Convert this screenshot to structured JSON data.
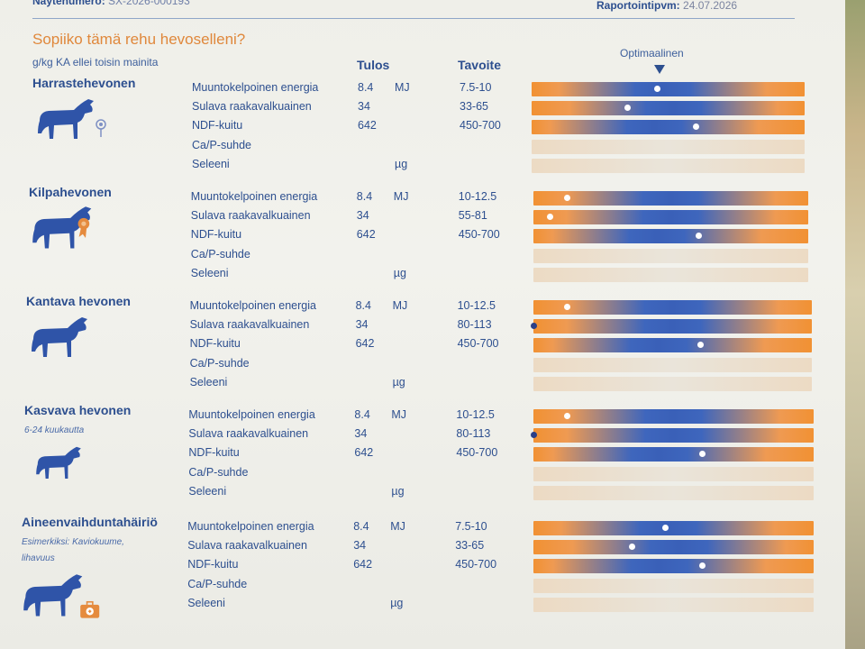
{
  "header": {
    "sample_label": "Näytenumero:",
    "sample_value": "SX-2026-000193",
    "report_label": "Raportointipvm:",
    "report_value": "24.07.2026"
  },
  "title": "Sopiiko tämä rehu hevoselleni?",
  "subtitle": "g/kg KA ellei toisin mainita",
  "columns": {
    "result": "Tulos",
    "target": "Tavoite"
  },
  "optimal_label": "Optimaalinen",
  "colors": {
    "orange": "#f19133",
    "blue": "#3e66bd",
    "text": "#2d4f8f",
    "heading": "#e0883c"
  },
  "groups": [
    {
      "title": "Harrastehevonen",
      "subtitle": "",
      "icon": "horse-with-flower-icon",
      "rows": [
        {
          "label": "Muuntokelpoinen energia",
          "value": "8.4",
          "unit": "MJ",
          "target": "7.5-10",
          "marker": 0.46,
          "optimum": 0.48
        },
        {
          "label": "Sulava raakavalkuainen",
          "value": "34",
          "unit": "",
          "target": "33-65",
          "marker": 0.35,
          "optimum": 0.52
        },
        {
          "label": "NDF-kuitu",
          "value": "642",
          "unit": "",
          "target": "450-700",
          "marker": 0.6,
          "optimum": 0.45
        },
        {
          "label": "Ca/P-suhde",
          "value": "",
          "unit": "",
          "target": "",
          "marker": null,
          "optimum": null
        },
        {
          "label": "Seleeni",
          "value": "",
          "unit": "µg",
          "target": "",
          "marker": null,
          "optimum": null
        }
      ]
    },
    {
      "title": "Kilpahevonen",
      "subtitle": "",
      "icon": "horse-with-rosette-icon",
      "rows": [
        {
          "label": "Muuntokelpoinen energia",
          "value": "8.4",
          "unit": "MJ",
          "target": "10-12.5",
          "marker": 0.12,
          "optimum": 0.5
        },
        {
          "label": "Sulava raakavalkuainen",
          "value": "34",
          "unit": "",
          "target": "55-81",
          "marker": 0.06,
          "optimum": 0.5
        },
        {
          "label": "NDF-kuitu",
          "value": "642",
          "unit": "",
          "target": "450-700",
          "marker": 0.6,
          "optimum": 0.45
        },
        {
          "label": "Ca/P-suhde",
          "value": "",
          "unit": "",
          "target": "",
          "marker": null,
          "optimum": null
        },
        {
          "label": "Seleeni",
          "value": "",
          "unit": "µg",
          "target": "",
          "marker": null,
          "optimum": null
        }
      ]
    },
    {
      "title": "Kantava hevonen",
      "subtitle": "",
      "icon": "pregnant-mare-icon",
      "rows": [
        {
          "label": "Muuntokelpoinen energia",
          "value": "8.4",
          "unit": "MJ",
          "target": "10-12.5",
          "marker": 0.12,
          "optimum": 0.5
        },
        {
          "label": "Sulava raakavalkuainen",
          "value": "34",
          "unit": "",
          "target": "80-113",
          "marker": 0.0,
          "marker_dark": true,
          "optimum": 0.5
        },
        {
          "label": "NDF-kuitu",
          "value": "642",
          "unit": "",
          "target": "450-700",
          "marker": 0.6,
          "optimum": 0.45
        },
        {
          "label": "Ca/P-suhde",
          "value": "",
          "unit": "",
          "target": "",
          "marker": null,
          "optimum": null
        },
        {
          "label": "Seleeni",
          "value": "",
          "unit": "µg",
          "target": "",
          "marker": null,
          "optimum": null
        }
      ]
    },
    {
      "title": "Kasvava hevonen",
      "subtitle": "6-24 kuukautta",
      "icon": "young-horse-icon",
      "rows": [
        {
          "label": "Muuntokelpoinen energia",
          "value": "8.4",
          "unit": "MJ",
          "target": "10-12.5",
          "marker": 0.12,
          "optimum": 0.5
        },
        {
          "label": "Sulava raakavalkuainen",
          "value": "34",
          "unit": "",
          "target": "80-113",
          "marker": 0.0,
          "marker_dark": true,
          "optimum": 0.5
        },
        {
          "label": "NDF-kuitu",
          "value": "642",
          "unit": "",
          "target": "450-700",
          "marker": 0.6,
          "optimum": 0.45
        },
        {
          "label": "Ca/P-suhde",
          "value": "",
          "unit": "",
          "target": "",
          "marker": null,
          "optimum": null
        },
        {
          "label": "Seleeni",
          "value": "",
          "unit": "µg",
          "target": "",
          "marker": null,
          "optimum": null
        }
      ]
    },
    {
      "title": "Aineenvaihduntahäiriö",
      "subtitle": "Esimerkiksi: Kaviokuume, lihavuus",
      "icon": "horse-with-medical-kit-icon",
      "rows": [
        {
          "label": "Muuntokelpoinen energia",
          "value": "8.4",
          "unit": "MJ",
          "target": "7.5-10",
          "marker": 0.47,
          "optimum": 0.48
        },
        {
          "label": "Sulava raakavalkuainen",
          "value": "34",
          "unit": "",
          "target": "33-65",
          "marker": 0.35,
          "optimum": 0.52
        },
        {
          "label": "NDF-kuitu",
          "value": "642",
          "unit": "",
          "target": "450-700",
          "marker": 0.6,
          "optimum": 0.45
        },
        {
          "label": "Ca/P-suhde",
          "value": "",
          "unit": "",
          "target": "",
          "marker": null,
          "optimum": null
        },
        {
          "label": "Seleeni",
          "value": "",
          "unit": "µg",
          "target": "",
          "marker": null,
          "optimum": null
        }
      ]
    }
  ]
}
